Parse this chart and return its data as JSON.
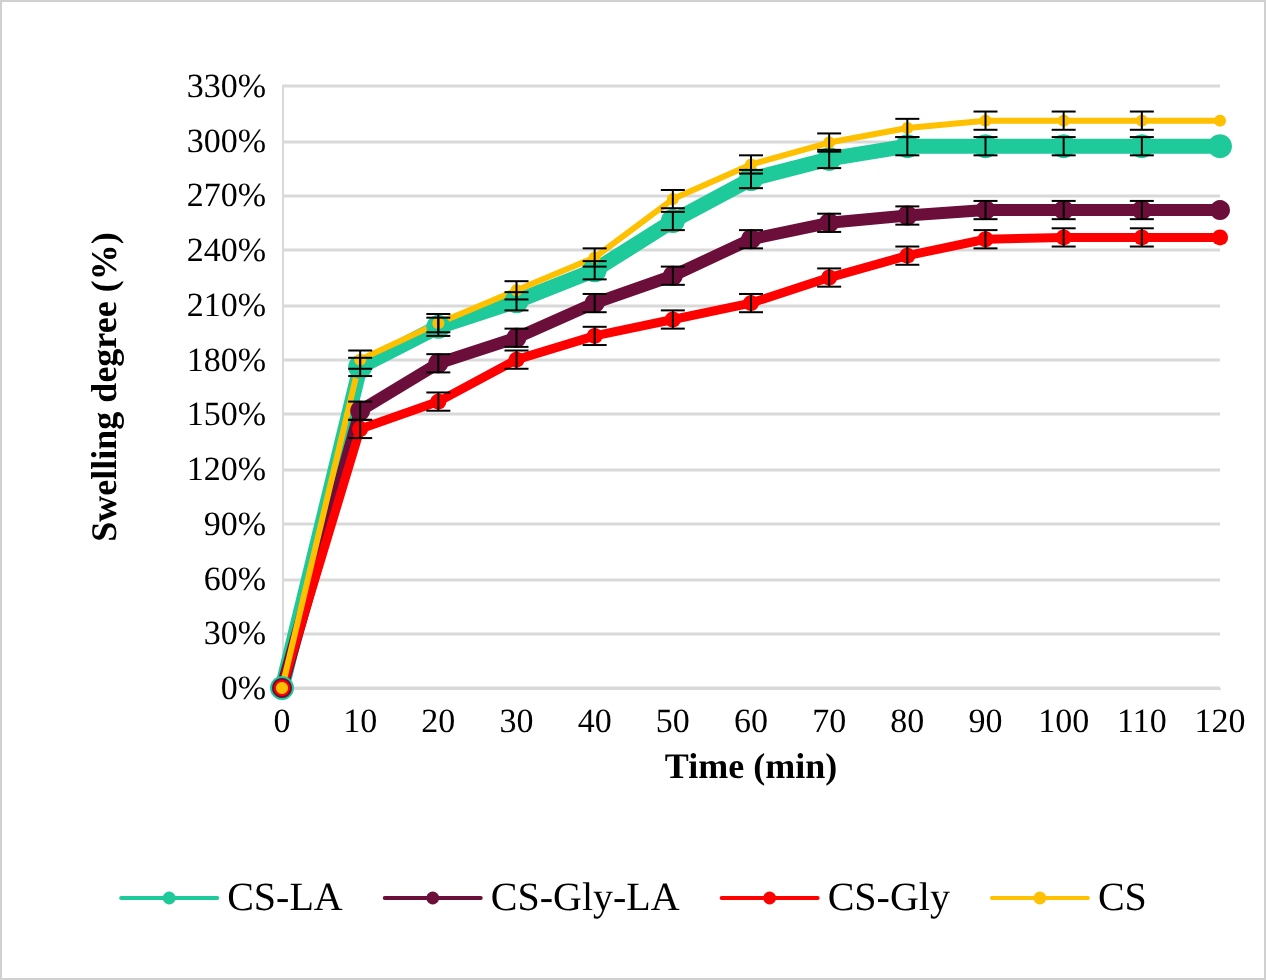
{
  "chart_data": {
    "type": "line",
    "xlabel": "Time (min)",
    "ylabel": "Swelling degree (%)",
    "categories": [
      "0",
      "10",
      "20",
      "30",
      "40",
      "50",
      "60",
      "70",
      "80",
      "90",
      "100",
      "110",
      "120"
    ],
    "ylim": [
      0,
      330
    ],
    "yticks": [
      {
        "value": 0,
        "label": "0%"
      },
      {
        "value": 30,
        "label": "30%"
      },
      {
        "value": 60,
        "label": "60%"
      },
      {
        "value": 90,
        "label": "90%"
      },
      {
        "value": 120,
        "label": "120%"
      },
      {
        "value": 150,
        "label": "150%"
      },
      {
        "value": 180,
        "label": "180%"
      },
      {
        "value": 210,
        "label": "210%"
      },
      {
        "value": 240,
        "label": "240%"
      },
      {
        "value": 270,
        "label": "270%"
      },
      {
        "value": 300,
        "label": "300%"
      },
      {
        "value": 330,
        "label": "330%"
      }
    ],
    "grid": "y",
    "legend": "bottom",
    "marker": "circle",
    "line_style": "solid",
    "series": [
      {
        "name": "CS-LA",
        "color": "#1ec99a",
        "values": [
          0,
          176,
          198,
          212,
          229,
          256,
          279,
          290,
          297,
          297,
          297,
          297,
          297
        ],
        "errors": [
          null,
          5,
          5,
          5,
          5,
          5,
          5,
          5,
          5,
          5,
          5,
          5,
          null
        ]
      },
      {
        "name": "CS-Gly-LA",
        "color": "#6b0f3a",
        "values": [
          0,
          152,
          178,
          192,
          211,
          226,
          246,
          255,
          259,
          262,
          262,
          262,
          262
        ],
        "errors": [
          null,
          5,
          5,
          5,
          5,
          5,
          5,
          5,
          5,
          5,
          5,
          5,
          null
        ]
      },
      {
        "name": "CS-Gly",
        "color": "#ff0000",
        "values": [
          0,
          142,
          157,
          180,
          193,
          202,
          211,
          225,
          237,
          246,
          247,
          247,
          247
        ],
        "errors": [
          null,
          5,
          5,
          5,
          5,
          5,
          5,
          5,
          5,
          5,
          5,
          5,
          null
        ]
      },
      {
        "name": "CS",
        "color": "#ffc000",
        "values": [
          0,
          180,
          200,
          218,
          236,
          268,
          287,
          299,
          307,
          311,
          311,
          311,
          311
        ],
        "errors": [
          null,
          5,
          5,
          5,
          5,
          5,
          5,
          5,
          5,
          5,
          5,
          5,
          null
        ]
      }
    ]
  }
}
